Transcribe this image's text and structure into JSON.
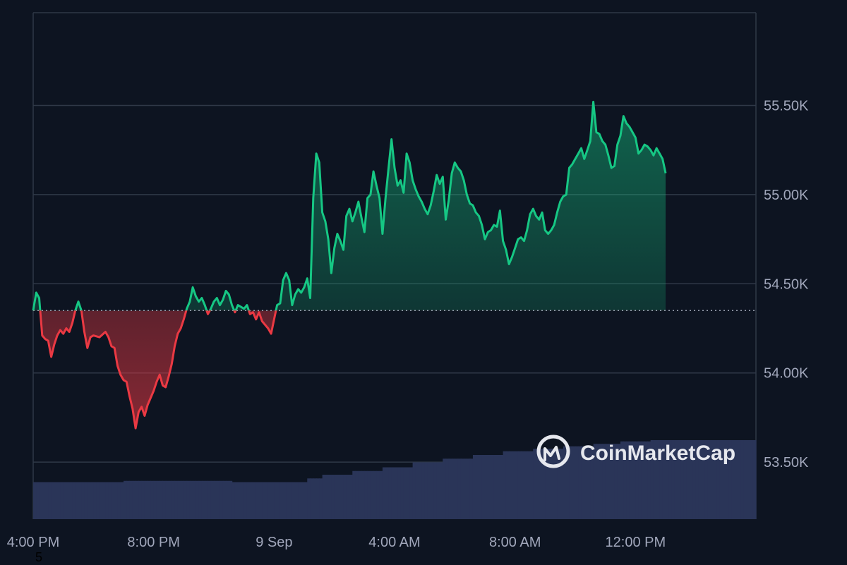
{
  "chart_data": {
    "type": "area",
    "y_tick_labels": [
      "55.50K",
      "55.00K",
      "54.50K",
      "54.00K",
      "53.50K"
    ],
    "y_tick_values": [
      55500,
      55000,
      54500,
      54000,
      53500
    ],
    "x_tick_labels": [
      "4:00 PM",
      "8:00 PM",
      "9 Sep",
      "4:00 AM",
      "8:00 AM",
      "12:00 PM"
    ],
    "x_tick_hours": [
      0,
      4,
      8,
      12,
      16,
      20
    ],
    "x_range_hours": [
      0,
      24
    ],
    "ylim": [
      53180,
      56020
    ],
    "baseline": 54350,
    "grid": true,
    "colors": {
      "background": "#0d1421",
      "up": "#16c784",
      "down": "#ea3943",
      "grid": "#2f3847",
      "volume": "#2a3558",
      "baseline": "#9aa1b0"
    },
    "series": [
      {
        "points": [
          [
            0.0,
            54350
          ],
          [
            0.1,
            54450
          ],
          [
            0.2,
            54420
          ],
          [
            0.3,
            54210
          ],
          [
            0.4,
            54190
          ],
          [
            0.5,
            54180
          ],
          [
            0.6,
            54090
          ],
          [
            0.7,
            54160
          ],
          [
            0.8,
            54210
          ],
          [
            0.9,
            54240
          ],
          [
            1.0,
            54220
          ],
          [
            1.1,
            54250
          ],
          [
            1.2,
            54230
          ],
          [
            1.3,
            54280
          ],
          [
            1.4,
            54350
          ],
          [
            1.5,
            54400
          ],
          [
            1.6,
            54350
          ],
          [
            1.7,
            54230
          ],
          [
            1.8,
            54140
          ],
          [
            1.9,
            54200
          ],
          [
            2.0,
            54210
          ],
          [
            2.2,
            54200
          ],
          [
            2.4,
            54230
          ],
          [
            2.5,
            54200
          ],
          [
            2.6,
            54150
          ],
          [
            2.7,
            54140
          ],
          [
            2.8,
            54040
          ],
          [
            2.9,
            53990
          ],
          [
            3.0,
            53960
          ],
          [
            3.1,
            53950
          ],
          [
            3.2,
            53870
          ],
          [
            3.3,
            53800
          ],
          [
            3.4,
            53690
          ],
          [
            3.5,
            53780
          ],
          [
            3.6,
            53810
          ],
          [
            3.7,
            53760
          ],
          [
            3.8,
            53820
          ],
          [
            3.9,
            53860
          ],
          [
            4.0,
            53900
          ],
          [
            4.1,
            53950
          ],
          [
            4.2,
            53990
          ],
          [
            4.3,
            53930
          ],
          [
            4.4,
            53920
          ],
          [
            4.5,
            53980
          ],
          [
            4.6,
            54050
          ],
          [
            4.7,
            54150
          ],
          [
            4.8,
            54220
          ],
          [
            4.9,
            54250
          ],
          [
            5.0,
            54300
          ],
          [
            5.1,
            54360
          ],
          [
            5.2,
            54400
          ],
          [
            5.3,
            54480
          ],
          [
            5.4,
            54430
          ],
          [
            5.5,
            54400
          ],
          [
            5.6,
            54420
          ],
          [
            5.7,
            54380
          ],
          [
            5.8,
            54330
          ],
          [
            5.9,
            54360
          ],
          [
            6.0,
            54400
          ],
          [
            6.1,
            54420
          ],
          [
            6.2,
            54380
          ],
          [
            6.3,
            54410
          ],
          [
            6.4,
            54460
          ],
          [
            6.5,
            54440
          ],
          [
            6.6,
            54380
          ],
          [
            6.7,
            54340
          ],
          [
            6.8,
            54380
          ],
          [
            6.9,
            54370
          ],
          [
            7.0,
            54360
          ],
          [
            7.1,
            54380
          ],
          [
            7.2,
            54330
          ],
          [
            7.3,
            54340
          ],
          [
            7.4,
            54300
          ],
          [
            7.5,
            54340
          ],
          [
            7.6,
            54290
          ],
          [
            7.7,
            54270
          ],
          [
            7.8,
            54250
          ],
          [
            7.9,
            54220
          ],
          [
            8.0,
            54300
          ],
          [
            8.1,
            54380
          ],
          [
            8.2,
            54390
          ],
          [
            8.3,
            54520
          ],
          [
            8.4,
            54560
          ],
          [
            8.5,
            54520
          ],
          [
            8.6,
            54380
          ],
          [
            8.7,
            54440
          ],
          [
            8.8,
            54470
          ],
          [
            8.9,
            54450
          ],
          [
            9.0,
            54480
          ],
          [
            9.1,
            54530
          ],
          [
            9.2,
            54420
          ],
          [
            9.3,
            54980
          ],
          [
            9.4,
            55230
          ],
          [
            9.5,
            55180
          ],
          [
            9.6,
            54900
          ],
          [
            9.7,
            54850
          ],
          [
            9.8,
            54750
          ],
          [
            9.9,
            54560
          ],
          [
            10.0,
            54700
          ],
          [
            10.1,
            54780
          ],
          [
            10.2,
            54740
          ],
          [
            10.3,
            54690
          ],
          [
            10.4,
            54880
          ],
          [
            10.5,
            54920
          ],
          [
            10.6,
            54850
          ],
          [
            10.7,
            54900
          ],
          [
            10.8,
            54960
          ],
          [
            10.9,
            54870
          ],
          [
            11.0,
            54790
          ],
          [
            11.1,
            54980
          ],
          [
            11.2,
            55000
          ],
          [
            11.3,
            55130
          ],
          [
            11.4,
            55050
          ],
          [
            11.5,
            54980
          ],
          [
            11.6,
            54780
          ],
          [
            11.7,
            54980
          ],
          [
            11.8,
            55150
          ],
          [
            11.9,
            55310
          ],
          [
            12.0,
            55150
          ],
          [
            12.1,
            55050
          ],
          [
            12.2,
            55080
          ],
          [
            12.3,
            55010
          ],
          [
            12.4,
            55230
          ],
          [
            12.5,
            55180
          ],
          [
            12.6,
            55080
          ],
          [
            12.7,
            55030
          ],
          [
            12.8,
            54990
          ],
          [
            12.9,
            54960
          ],
          [
            13.0,
            54920
          ],
          [
            13.1,
            54890
          ],
          [
            13.2,
            54940
          ],
          [
            13.3,
            55020
          ],
          [
            13.4,
            55110
          ],
          [
            13.5,
            55060
          ],
          [
            13.6,
            55100
          ],
          [
            13.7,
            54860
          ],
          [
            13.8,
            54970
          ],
          [
            13.9,
            55120
          ],
          [
            14.0,
            55180
          ],
          [
            14.1,
            55150
          ],
          [
            14.2,
            55130
          ],
          [
            14.3,
            55080
          ],
          [
            14.4,
            55000
          ],
          [
            14.5,
            54950
          ],
          [
            14.6,
            54940
          ],
          [
            14.7,
            54900
          ],
          [
            14.8,
            54880
          ],
          [
            14.9,
            54830
          ],
          [
            15.0,
            54750
          ],
          [
            15.1,
            54790
          ],
          [
            15.2,
            54800
          ],
          [
            15.3,
            54830
          ],
          [
            15.4,
            54820
          ],
          [
            15.5,
            54910
          ],
          [
            15.6,
            54740
          ],
          [
            15.7,
            54690
          ],
          [
            15.8,
            54610
          ],
          [
            15.9,
            54650
          ],
          [
            16.0,
            54700
          ],
          [
            16.1,
            54750
          ],
          [
            16.2,
            54760
          ],
          [
            16.3,
            54740
          ],
          [
            16.4,
            54800
          ],
          [
            16.5,
            54890
          ],
          [
            16.6,
            54920
          ],
          [
            16.7,
            54880
          ],
          [
            16.8,
            54860
          ],
          [
            16.9,
            54900
          ],
          [
            17.0,
            54800
          ],
          [
            17.1,
            54780
          ],
          [
            17.2,
            54800
          ],
          [
            17.3,
            54830
          ],
          [
            17.4,
            54900
          ],
          [
            17.5,
            54960
          ],
          [
            17.6,
            54990
          ],
          [
            17.7,
            55000
          ],
          [
            17.8,
            55150
          ],
          [
            17.9,
            55170
          ],
          [
            18.0,
            55200
          ],
          [
            18.1,
            55230
          ],
          [
            18.2,
            55260
          ],
          [
            18.3,
            55200
          ],
          [
            18.4,
            55250
          ],
          [
            18.5,
            55300
          ],
          [
            18.6,
            55520
          ],
          [
            18.7,
            55350
          ],
          [
            18.8,
            55340
          ],
          [
            18.9,
            55300
          ],
          [
            19.0,
            55280
          ],
          [
            19.1,
            55220
          ],
          [
            19.2,
            55150
          ],
          [
            19.3,
            55160
          ],
          [
            19.4,
            55280
          ],
          [
            19.5,
            55330
          ],
          [
            19.6,
            55440
          ],
          [
            19.7,
            55400
          ],
          [
            19.8,
            55380
          ],
          [
            19.9,
            55350
          ],
          [
            20.0,
            55320
          ],
          [
            20.1,
            55230
          ],
          [
            20.2,
            55250
          ],
          [
            20.3,
            55280
          ],
          [
            20.4,
            55270
          ],
          [
            20.5,
            55250
          ],
          [
            20.6,
            55220
          ],
          [
            20.7,
            55260
          ],
          [
            20.8,
            55230
          ],
          [
            20.9,
            55200
          ],
          [
            21.0,
            55120
          ]
        ]
      }
    ],
    "volume_levels": [
      [
        0.0,
        0.3
      ],
      [
        3.0,
        0.31
      ],
      [
        6.5,
        0.3
      ],
      [
        9.0,
        0.33
      ],
      [
        9.5,
        0.36
      ],
      [
        10.5,
        0.39
      ],
      [
        11.5,
        0.42
      ],
      [
        12.5,
        0.46
      ],
      [
        13.5,
        0.49
      ],
      [
        14.5,
        0.52
      ],
      [
        15.5,
        0.55
      ],
      [
        16.5,
        0.57
      ],
      [
        17.5,
        0.59
      ],
      [
        18.5,
        0.61
      ],
      [
        19.5,
        0.63
      ],
      [
        20.5,
        0.64
      ],
      [
        21.0,
        0.64
      ]
    ],
    "annotations": [],
    "legend": "none"
  },
  "watermark": {
    "text": "CoinMarketCap",
    "icon": "coinmarketcap-logo-icon"
  },
  "stray_label": "5"
}
